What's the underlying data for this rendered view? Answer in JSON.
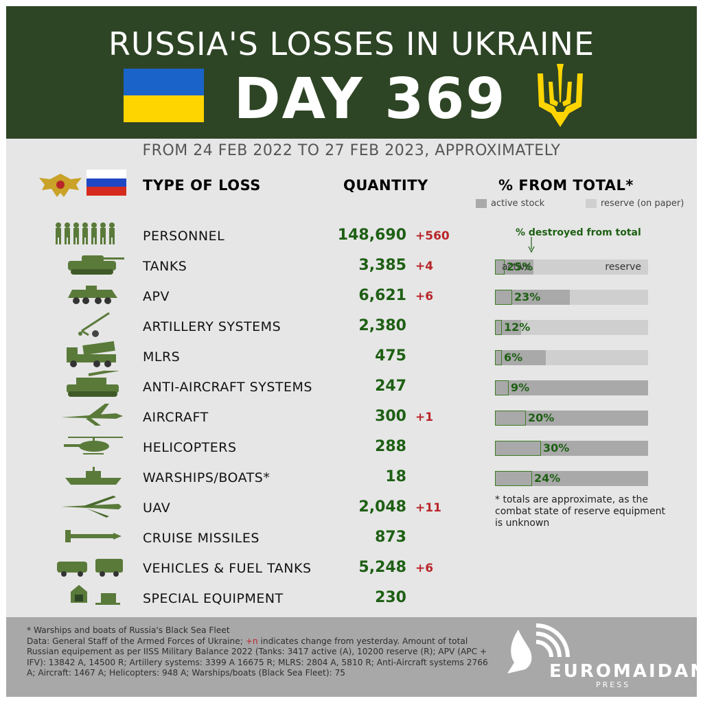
{
  "header": {
    "title": "RUSSIA'S LOSSES IN UKRAINE",
    "day": "DAY 369",
    "period": "FROM 24 FEB 2022 TO 27 FEB 2023, APPROXIMATELY"
  },
  "columns": {
    "type": "TYPE OF LOSS",
    "quantity": "QUANTITY",
    "pct": "% FROM TOTAL*"
  },
  "legend": {
    "active": "active stock",
    "reserve": "reserve (on paper)",
    "destroyed": "% destroyed from total",
    "active_inbar": "active",
    "reserve_inbar": "reserve"
  },
  "colors": {
    "header_bg": "#2e4525",
    "qty_green": "#1e5f14",
    "change_red": "#b8262a",
    "active_grey": "#a9a9a9",
    "reserve_grey": "#cfcfcf"
  },
  "chart_data": {
    "type": "table",
    "rows": [
      {
        "label": "PERSONNEL",
        "icon": "soldiers-icon",
        "quantity": "148,690",
        "change": "+560"
      },
      {
        "label": "TANKS",
        "icon": "tank-icon",
        "quantity": "3,385",
        "change": "+4",
        "pct": "25%",
        "pct_value": 25,
        "active_share": 0.25
      },
      {
        "label": "APV",
        "icon": "apv-icon",
        "quantity": "6,621",
        "change": "+6",
        "pct": "23%",
        "pct_value": 23,
        "active_share": 0.49
      },
      {
        "label": "ARTILLERY SYSTEMS",
        "icon": "artillery-icon",
        "quantity": "2,380",
        "change": "",
        "pct": "12%",
        "pct_value": 12,
        "active_share": 0.17
      },
      {
        "label": "MLRS",
        "icon": "mlrs-icon",
        "quantity": "475",
        "change": "",
        "pct": "6%",
        "pct_value": 6,
        "active_share": 0.33
      },
      {
        "label": "ANTI-AIRCRAFT SYSTEMS",
        "icon": "anti-aircraft-icon",
        "quantity": "247",
        "change": "",
        "pct": "9%",
        "pct_value": 9,
        "active_share": 1.0
      },
      {
        "label": "AIRCRAFT",
        "icon": "aircraft-icon",
        "quantity": "300",
        "change": "+1",
        "pct": "20%",
        "pct_value": 20,
        "active_share": 1.0
      },
      {
        "label": "HELICOPTERS",
        "icon": "helicopter-icon",
        "quantity": "288",
        "change": "",
        "pct": "30%",
        "pct_value": 30,
        "active_share": 1.0
      },
      {
        "label": "WARSHIPS/BOATS*",
        "icon": "warship-icon",
        "quantity": "18",
        "change": "",
        "pct": "24%",
        "pct_value": 24,
        "active_share": 1.0
      },
      {
        "label": "UAV",
        "icon": "uav-icon",
        "quantity": "2,048",
        "change": "+11"
      },
      {
        "label": "CRUISE MISSILES",
        "icon": "cruise-missile-icon",
        "quantity": "873",
        "change": ""
      },
      {
        "label": "VEHICLES & FUEL TANKS",
        "icon": "vehicles-icon",
        "quantity": "5,248",
        "change": "+6"
      },
      {
        "label": "SPECIAL EQUIPMENT",
        "icon": "special-equipment-icon",
        "quantity": "230",
        "change": ""
      }
    ]
  },
  "note": "* totals are approximate, as the combat state of reserve equipment is unknown",
  "footer": {
    "line1": "* Warships and boats of Russia's Black Sea Fleet",
    "line2a": "Data: General Staff of the Armed Forces of Ukraine; ",
    "line2plus": "+n",
    "line2b": " indicates change from yesterday. Amount of total Russian equipement as per IISS Military Balance 2022 (Tanks: 3417 active (A), 10200 reserve (R); APV (APC + IFV): 13842 A, 14500 R; Artillery systems: 3399 A 16675 R; MLRS: 2804 A, 5810 R; Anti-Aircraft systems 2766 A; Aircraft: 1467 A; Helicopters: 948 A; Warships/boats (Black Sea Fleet): 75",
    "brand": "EUROMAIDAN",
    "brand_sub": "PRESS"
  }
}
